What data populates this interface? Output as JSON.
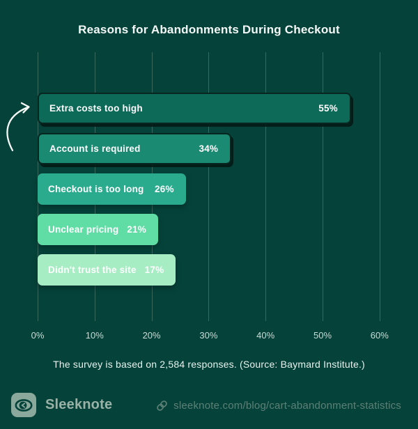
{
  "title": "Reasons for Abandonments During Checkout",
  "chart_data": {
    "type": "bar",
    "orientation": "horizontal",
    "title": "Reasons for Abandonments During Checkout",
    "categories": [
      "Extra costs too high",
      "Account is required",
      "Checkout is too long",
      "Unclear pricing",
      "Didn't trust the site"
    ],
    "values": [
      55,
      34,
      26,
      21,
      17
    ],
    "value_labels": [
      "55%",
      "34%",
      "26%",
      "21%",
      "17%"
    ],
    "bar_colors": [
      "#0D6A58",
      "#1B8A72",
      "#2AAB8D",
      "#5FDDA4",
      "#A6EDC3"
    ],
    "bar_outlined": [
      true,
      true,
      false,
      false,
      false
    ],
    "x_ticks": [
      "0%",
      "10%",
      "20%",
      "30%",
      "40%",
      "50%",
      "60%"
    ],
    "xlim": [
      0,
      60
    ],
    "grid": "vertical-only",
    "legend": "none",
    "annotation": "hand-drawn curved arrow pointing at top bar"
  },
  "caption": "The survey is based on 2,584 responses. (Source: Baymard Institute.)",
  "footer": {
    "brand": "Sleeknote",
    "url": "sleeknote.com/blog/cart-abandonment-statistics"
  },
  "colors": {
    "background": "#05433A",
    "gridline": "#39685E",
    "title_text": "#F4F9F7",
    "axis_text": "#C9DCD6",
    "caption_text": "#E8F2EE",
    "brand_text": "#99B1A6",
    "url_text": "#5D8076",
    "logo_background": "#8AA89C",
    "arrow": "#F5FAF7"
  }
}
